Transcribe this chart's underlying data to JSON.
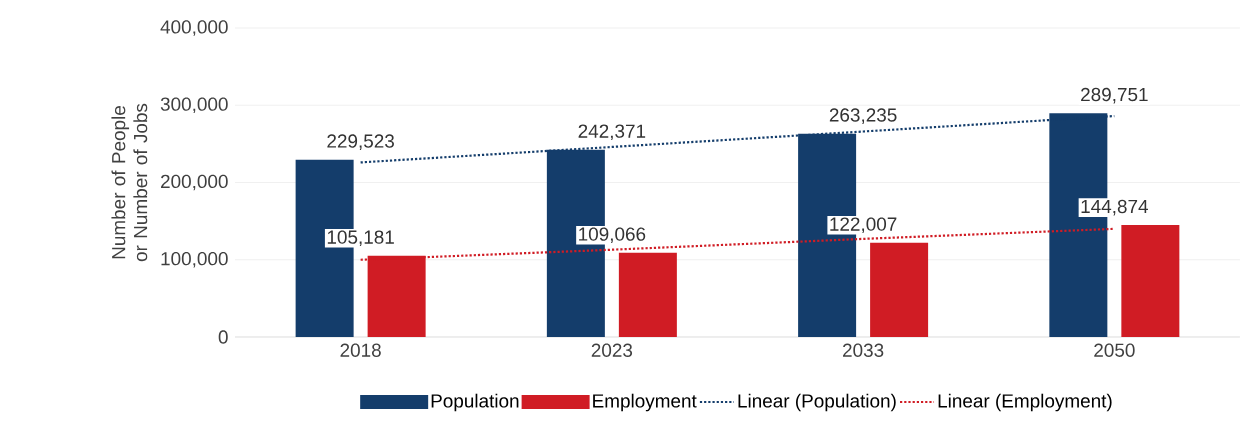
{
  "chart_data": {
    "type": "bar",
    "ylabel": "Number of People or Number of Jobs",
    "categories": [
      "2018",
      "2023",
      "2033",
      "2050"
    ],
    "series": [
      {
        "name": "Population",
        "color": "#143d6b",
        "values": [
          229523,
          242371,
          263235,
          289751
        ],
        "value_labels": [
          "229,523",
          "242,371",
          "263,235",
          "289,751"
        ]
      },
      {
        "name": "Employment",
        "color": "#d01c24",
        "values": [
          105181,
          109066,
          122007,
          144874
        ],
        "value_labels": [
          "105,181",
          "109,066",
          "122,007",
          "144,874"
        ]
      },
      {
        "name": "Linear (Population)",
        "type": "line",
        "line_style": "dotted",
        "color": "#143d6b",
        "values": [
          226000,
          246000,
          266000,
          286000
        ]
      },
      {
        "name": "Linear (Employment)",
        "type": "line",
        "line_style": "dotted",
        "color": "#d01c24",
        "values": [
          100000,
          113000,
          127000,
          140000
        ]
      }
    ],
    "ylim": [
      0,
      400000
    ],
    "yticks": [
      {
        "value": 0,
        "label": "0"
      },
      {
        "value": 100000,
        "label": "100,000"
      },
      {
        "value": 200000,
        "label": "200,000"
      },
      {
        "value": 300000,
        "label": "300,000"
      },
      {
        "value": 400000,
        "label": "400,000"
      }
    ],
    "grid": "y",
    "legend": "bottom"
  }
}
